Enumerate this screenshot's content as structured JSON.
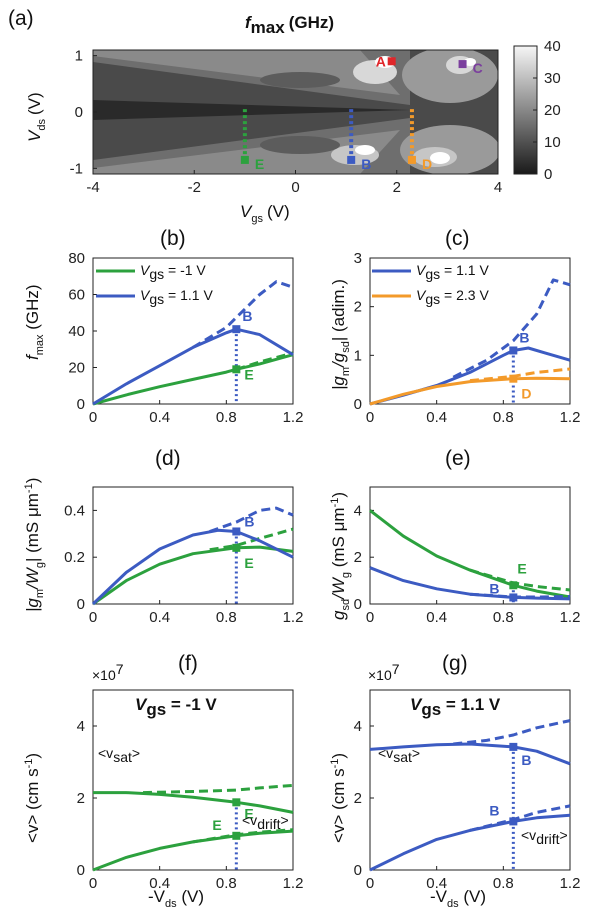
{
  "figure": {
    "colors": {
      "green": "#2ca13e",
      "blue": "#3c5bc2",
      "orange": "#f39a2a",
      "red": "#e0262a",
      "purple": "#7b3f9e"
    }
  },
  "panel_a": {
    "label": "(a)",
    "title_main": "f",
    "title_sub": "max",
    "title_unit": "(GHz)",
    "xlabel_main": "V",
    "xlabel_sub": "gs",
    "xlabel_unit": "(V)",
    "ylabel_main": "V",
    "ylabel_sub": "ds",
    "ylabel_unit": "(V)",
    "xticks": [
      "-4",
      "-2",
      "0",
      "2",
      "4"
    ],
    "yticks": [
      "1",
      "0",
      "-1"
    ],
    "colorbar_ticks": [
      "40",
      "30",
      "20",
      "10",
      "0"
    ],
    "points": {
      "A": {
        "label": "A",
        "x": 1.9,
        "y": 0.9
      },
      "B": {
        "label": "B",
        "x": 1.1,
        "y": -0.85
      },
      "C": {
        "label": "C",
        "x": 3.3,
        "y": 0.85
      },
      "D": {
        "label": "D",
        "x": 2.3,
        "y": -0.85
      },
      "E": {
        "label": "E",
        "x": -1.0,
        "y": -0.85
      }
    }
  },
  "panel_b": {
    "label": "(b)",
    "legend": [
      "V",
      "gs",
      " = -1 V",
      "V",
      "gs",
      " = 1.1 V"
    ],
    "ylabel": [
      "f",
      "max",
      " (GHz)"
    ],
    "marker_B": "B",
    "marker_E": "E"
  },
  "panel_c": {
    "label": "(c)",
    "legend": [
      "V",
      "gs",
      " = 1.1 V",
      "V",
      "gs",
      " = 2.3 V"
    ],
    "ylabel": [
      "|g",
      "m",
      "/g",
      "sd",
      "| (adim.)"
    ],
    "marker_B": "B",
    "marker_D": "D"
  },
  "panel_d": {
    "label": "(d)",
    "ylabel": [
      "|g",
      "m",
      "/W",
      "g",
      "| (mS μm",
      "-1",
      ")"
    ],
    "marker_B": "B",
    "marker_E": "E"
  },
  "panel_e": {
    "label": "(e)",
    "ylabel": [
      "g",
      "sd",
      "/W",
      "g",
      " (mS μm",
      "-1",
      ")"
    ],
    "marker_B": "B",
    "marker_E": "E"
  },
  "panel_f": {
    "label": "(f)",
    "title": [
      "V",
      "gs",
      " = -1 V"
    ],
    "exp": "×10",
    "exp_pow": "7",
    "ylabel": [
      "<v> (cm s",
      "-1",
      ")"
    ],
    "xlabel": [
      "-V",
      "ds",
      " (V)"
    ],
    "vsat": [
      "<v",
      "sat",
      ">"
    ],
    "vdrift": [
      "<v",
      "drift",
      ">"
    ],
    "marker_E1": "E",
    "marker_E2": "E"
  },
  "panel_g": {
    "label": "(g)",
    "title": [
      "V",
      "gs",
      " = 1.1 V"
    ],
    "exp": "×10",
    "exp_pow": "7",
    "ylabel": [
      "<v> (cm s",
      "-1",
      ")"
    ],
    "xlabel": [
      "-V",
      "ds",
      " (V)"
    ],
    "vsat": [
      "<v",
      "sat",
      ">"
    ],
    "vdrift": [
      "<v",
      "drift",
      ">"
    ],
    "marker_B1": "B",
    "marker_B2": "B"
  },
  "chart_data": [
    {
      "type": "heatmap",
      "panel": "(a)",
      "title": "fmax (GHz)",
      "xlabel": "Vgs (V)",
      "ylabel": "Vds (V)",
      "xlim": [
        -4,
        4
      ],
      "ylim": [
        -1.1,
        1.1
      ],
      "colorbar": {
        "range": [
          0,
          40
        ],
        "ticks": [
          0,
          10,
          20,
          30,
          40
        ]
      },
      "markers": [
        {
          "name": "A",
          "vgs": 1.9,
          "vds": 0.9
        },
        {
          "name": "B",
          "vgs": 1.1,
          "vds": -0.85
        },
        {
          "name": "C",
          "vgs": 3.3,
          "vds": 0.85
        },
        {
          "name": "D",
          "vgs": 2.3,
          "vds": -0.85
        },
        {
          "name": "E",
          "vgs": -1.0,
          "vds": -0.85
        }
      ]
    },
    {
      "type": "line",
      "panel": "(b)",
      "ylabel": "fmax (GHz)",
      "xlim": [
        0,
        1.2
      ],
      "ylim": [
        0,
        80
      ],
      "xticks": [
        0,
        0.4,
        0.8,
        1.2
      ],
      "yticks": [
        0,
        20,
        40,
        60,
        80
      ],
      "marker_x": 0.86,
      "series": [
        {
          "name": "Vgs = -1 V",
          "color": "green",
          "style": "solid",
          "x": [
            0,
            0.2,
            0.4,
            0.6,
            0.8,
            0.86,
            1.0,
            1.2
          ],
          "y": [
            0,
            5,
            9.5,
            13.5,
            17.5,
            19,
            22,
            27
          ]
        },
        {
          "color": "green",
          "style": "dashed",
          "x": [
            0.86,
            1.0,
            1.2
          ],
          "y": [
            19,
            23,
            28
          ]
        },
        {
          "name": "Vgs = 1.1 V",
          "color": "blue",
          "style": "solid",
          "x": [
            0,
            0.2,
            0.4,
            0.6,
            0.8,
            0.86,
            1.0,
            1.2
          ],
          "y": [
            0,
            11,
            21,
            31,
            39,
            41,
            38,
            27
          ]
        },
        {
          "color": "blue",
          "style": "dashed",
          "x": [
            0.6,
            0.8,
            0.9,
            1.0,
            1.1,
            1.2
          ],
          "y": [
            31,
            42,
            51,
            60,
            67,
            64
          ]
        }
      ]
    },
    {
      "type": "line",
      "panel": "(c)",
      "ylabel": "|gm/gsd| (adim.)",
      "xlim": [
        0,
        1.2
      ],
      "ylim": [
        0,
        3
      ],
      "xticks": [
        0,
        0.4,
        0.8,
        1.2
      ],
      "yticks": [
        0,
        1,
        2,
        3
      ],
      "marker_x": 0.86,
      "series": [
        {
          "name": "Vgs = 1.1 V",
          "color": "blue",
          "style": "solid",
          "x": [
            0,
            0.2,
            0.4,
            0.6,
            0.8,
            0.86,
            0.95,
            1.05,
            1.2
          ],
          "y": [
            0,
            0.18,
            0.38,
            0.65,
            1.0,
            1.1,
            1.15,
            1.05,
            0.9
          ]
        },
        {
          "color": "blue",
          "style": "dashed",
          "x": [
            0.5,
            0.7,
            0.86,
            1.0,
            1.1,
            1.2
          ],
          "y": [
            0.55,
            0.9,
            1.3,
            1.85,
            2.55,
            2.45
          ]
        },
        {
          "name": "Vgs = 2.3 V",
          "color": "orange",
          "style": "solid",
          "x": [
            0,
            0.2,
            0.4,
            0.6,
            0.86,
            1.0,
            1.2
          ],
          "y": [
            0,
            0.2,
            0.36,
            0.46,
            0.52,
            0.53,
            0.52
          ]
        },
        {
          "color": "orange",
          "style": "dashed",
          "x": [
            0.6,
            0.86,
            1.0,
            1.2
          ],
          "y": [
            0.48,
            0.57,
            0.65,
            0.72
          ]
        }
      ]
    },
    {
      "type": "line",
      "panel": "(d)",
      "ylabel": "|gm/Wg| (mS μm-1)",
      "xlim": [
        0,
        1.2
      ],
      "ylim": [
        0,
        0.5
      ],
      "xticks": [
        0,
        0.4,
        0.8,
        1.2
      ],
      "yticks": [
        0,
        0.2,
        0.4
      ],
      "marker_x": 0.86,
      "series": [
        {
          "color": "green",
          "style": "solid",
          "x": [
            0,
            0.2,
            0.4,
            0.6,
            0.86,
            1.0,
            1.2
          ],
          "y": [
            0,
            0.1,
            0.17,
            0.215,
            0.24,
            0.243,
            0.225
          ]
        },
        {
          "color": "green",
          "style": "dashed",
          "x": [
            0.7,
            0.86,
            1.0,
            1.2
          ],
          "y": [
            0.232,
            0.25,
            0.28,
            0.32
          ]
        },
        {
          "color": "blue",
          "style": "solid",
          "x": [
            0,
            0.2,
            0.4,
            0.6,
            0.75,
            0.86,
            1.0,
            1.2
          ],
          "y": [
            0,
            0.135,
            0.235,
            0.295,
            0.315,
            0.31,
            0.27,
            0.2
          ]
        },
        {
          "color": "blue",
          "style": "dashed",
          "x": [
            0.7,
            0.86,
            1.0,
            1.1,
            1.2
          ],
          "y": [
            0.31,
            0.35,
            0.4,
            0.41,
            0.38
          ]
        }
      ]
    },
    {
      "type": "line",
      "panel": "(e)",
      "ylabel": "gsd/Wg (mS μm-1)",
      "xlim": [
        0,
        1.2
      ],
      "ylim": [
        0,
        5
      ],
      "xticks": [
        0,
        0.4,
        0.8,
        1.2
      ],
      "yticks": [
        0,
        2,
        4
      ],
      "marker_x": 0.86,
      "series": [
        {
          "color": "green",
          "style": "solid",
          "x": [
            0,
            0.2,
            0.4,
            0.6,
            0.86,
            1.0,
            1.2
          ],
          "y": [
            4.0,
            2.9,
            2.05,
            1.45,
            0.8,
            0.55,
            0.3
          ]
        },
        {
          "color": "green",
          "style": "dashed",
          "x": [
            0.6,
            0.86,
            1.0,
            1.2
          ],
          "y": [
            1.45,
            0.9,
            0.75,
            0.6
          ]
        },
        {
          "color": "blue",
          "style": "solid",
          "x": [
            0,
            0.2,
            0.4,
            0.6,
            0.86,
            1.0,
            1.2
          ],
          "y": [
            1.55,
            1.0,
            0.65,
            0.42,
            0.28,
            0.25,
            0.22
          ]
        },
        {
          "color": "blue",
          "style": "dashed",
          "x": [
            0.6,
            0.86,
            1.0,
            1.2
          ],
          "y": [
            0.42,
            0.3,
            0.3,
            0.32
          ]
        }
      ]
    },
    {
      "type": "line",
      "panel": "(f)",
      "title": "Vgs = -1 V",
      "ylabel": "<v> (cm s-1)",
      "xlabel": "-Vds (V)",
      "xlim": [
        0,
        1.2
      ],
      "ylim": [
        0,
        5
      ],
      "yscale_factor": "1e7",
      "xticks": [
        0,
        0.4,
        0.8,
        1.2
      ],
      "yticks": [
        0,
        2,
        4
      ],
      "marker_x": 0.86,
      "series": [
        {
          "name": "<vsat>",
          "color": "green",
          "style": "solid",
          "x": [
            0,
            0.2,
            0.4,
            0.6,
            0.86,
            1.0,
            1.2
          ],
          "y": [
            2.15,
            2.15,
            2.1,
            2.02,
            1.88,
            1.78,
            1.6
          ]
        },
        {
          "color": "green",
          "style": "dashed",
          "x": [
            0.3,
            0.6,
            0.86,
            1.0,
            1.2
          ],
          "y": [
            2.15,
            2.18,
            2.22,
            2.28,
            2.35
          ]
        },
        {
          "name": "<vdrift>",
          "color": "green",
          "style": "solid",
          "x": [
            0,
            0.2,
            0.4,
            0.6,
            0.86,
            1.0,
            1.2
          ],
          "y": [
            0,
            0.35,
            0.6,
            0.78,
            0.95,
            1.02,
            1.08
          ]
        },
        {
          "color": "green",
          "style": "dashed",
          "x": [
            0.6,
            0.86,
            1.0,
            1.2
          ],
          "y": [
            0.78,
            0.98,
            1.05,
            1.12
          ]
        }
      ]
    },
    {
      "type": "line",
      "panel": "(g)",
      "title": "Vgs = 1.1 V",
      "ylabel": "<v> (cm s-1)",
      "xlabel": "-Vds (V)",
      "xlim": [
        0,
        1.2
      ],
      "ylim": [
        0,
        5
      ],
      "yscale_factor": "1e7",
      "xticks": [
        0,
        0.4,
        0.8,
        1.2
      ],
      "yticks": [
        0,
        2,
        4
      ],
      "marker_x": 0.86,
      "series": [
        {
          "name": "<vsat>",
          "color": "blue",
          "style": "solid",
          "x": [
            0,
            0.2,
            0.4,
            0.6,
            0.86,
            1.0,
            1.2
          ],
          "y": [
            3.35,
            3.42,
            3.48,
            3.5,
            3.42,
            3.3,
            2.95
          ]
        },
        {
          "color": "blue",
          "style": "dashed",
          "x": [
            0.5,
            0.7,
            0.86,
            1.0,
            1.2
          ],
          "y": [
            3.5,
            3.6,
            3.75,
            3.95,
            4.15
          ]
        },
        {
          "name": "<vdrift>",
          "color": "blue",
          "style": "solid",
          "x": [
            0,
            0.2,
            0.4,
            0.6,
            0.86,
            1.0,
            1.2
          ],
          "y": [
            0,
            0.45,
            0.85,
            1.1,
            1.35,
            1.45,
            1.52
          ]
        },
        {
          "color": "blue",
          "style": "dashed",
          "x": [
            0.6,
            0.86,
            1.0,
            1.2
          ],
          "y": [
            1.1,
            1.4,
            1.6,
            1.78
          ]
        }
      ]
    }
  ]
}
